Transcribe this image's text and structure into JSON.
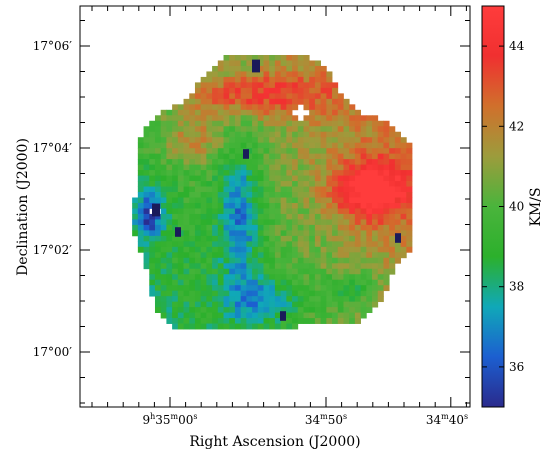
{
  "chart_data": {
    "type": "heatmap",
    "title": "",
    "xlabel": "Right Ascension (J2000)",
    "ylabel": "Declination (J2000)",
    "x_ticks": [
      {
        "h": "9",
        "m": "35",
        "s": "00"
      },
      {
        "h": "",
        "m": "34",
        "s": "50"
      },
      {
        "h": "",
        "m": "34",
        "s": "40"
      }
    ],
    "x_tick_units": {
      "h": "h",
      "m": "m",
      "s": "s"
    },
    "y_ticks": [
      "17°06′",
      "17°04′",
      "17°02′",
      "17°00′"
    ],
    "colorbar": {
      "label": "KM/S",
      "ticks": [
        36,
        38,
        40,
        42,
        44
      ],
      "range": [
        35,
        45
      ],
      "colors": [
        "#2a2a8c",
        "#1c5fd0",
        "#10a8b8",
        "#2cb02c",
        "#4ab43c",
        "#9c9c3c",
        "#d0702c",
        "#f03030",
        "#ff3c3c"
      ]
    },
    "map": {
      "cells_ra": 52,
      "cells_dec": 52,
      "ra_range_s": [
        566.0,
        521.0
      ],
      "dec_range_arcmin": [
        1018.75,
        1026.8
      ],
      "velocity_range": [
        35,
        45
      ],
      "description_of_structure": []
    }
  }
}
